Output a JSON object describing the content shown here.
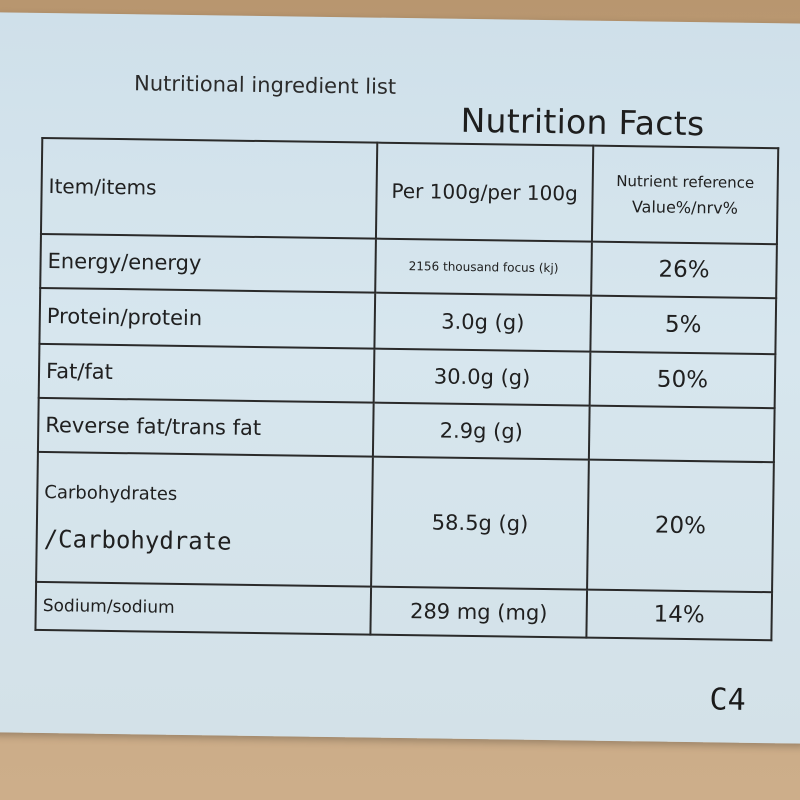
{
  "label": {
    "subtitle": "Nutritional ingredient list",
    "title": "Nutrition Facts",
    "code": "C4"
  },
  "table": {
    "header": {
      "item": "Item/items",
      "per": "Per 100g/per 100g",
      "nrv_line1": "Nutrient reference",
      "nrv_line2": "Value%/nrv%"
    },
    "rows": [
      {
        "name": "Energy/energy",
        "amount": "2156 thousand focus (kj)",
        "nrv": "26%"
      },
      {
        "name": "Protein/protein",
        "amount": "3.0g (g)",
        "nrv": "5%"
      },
      {
        "name": "Fat/fat",
        "amount": "30.0g (g)",
        "nrv": "50%"
      },
      {
        "name": "Reverse fat/trans fat",
        "amount": "2.9g (g)",
        "nrv": ""
      },
      {
        "name_line1": "Carbohydrates",
        "name_line2": "/Carbohydrate",
        "amount": "58.5g (g)",
        "nrv": "20%"
      },
      {
        "name": "Sodium/sodium",
        "amount": "289 mg (mg)",
        "nrv": "14%"
      }
    ]
  }
}
